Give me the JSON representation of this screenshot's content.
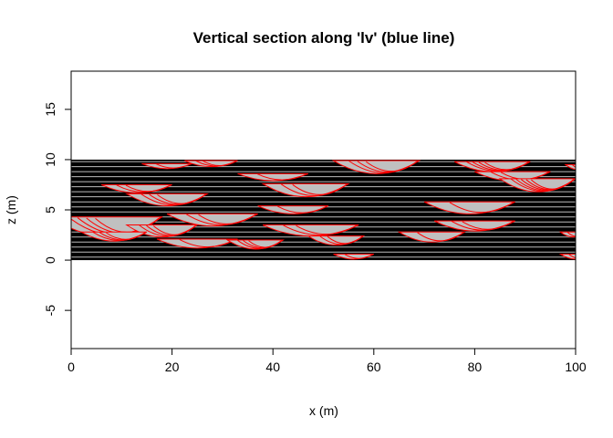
{
  "chart_data": {
    "type": "section",
    "title": "Vertical section along 'lv' (blue line)",
    "xlabel": "x (m)",
    "ylabel": "z (m)",
    "xlim": [
      0,
      100
    ],
    "ylim": [
      -8.8,
      18.8
    ],
    "xticks": [
      0,
      20,
      40,
      60,
      80,
      100
    ],
    "yticks": [
      -5,
      0,
      5,
      10,
      15
    ],
    "band": {
      "z_min": 0,
      "z_max": 10,
      "fill": "#000000"
    },
    "layer_lines_z": [
      0.3,
      0.8,
      1.3,
      1.8,
      2.3,
      2.8,
      3.3,
      3.8,
      4.3,
      4.8,
      5.3,
      5.8,
      6.3,
      6.8,
      7.3,
      7.8,
      8.3,
      8.8,
      9.3,
      9.8
    ],
    "layer_line_color": "#bebebe",
    "lens_fill": "#c0c0c0",
    "lens_stroke": "#ff0000",
    "lenses": [
      {
        "x0": 14,
        "x1": 24,
        "top": 9.6,
        "depth": 0.5,
        "inner": 1
      },
      {
        "x0": 22.5,
        "x1": 33,
        "top": 9.9,
        "depth": 0.6,
        "inner": 2
      },
      {
        "x0": 33,
        "x1": 47,
        "top": 8.6,
        "depth": 0.7,
        "inner": 1
      },
      {
        "x0": 52,
        "x1": 69,
        "top": 9.9,
        "depth": 1.3,
        "inner": 3
      },
      {
        "x0": 76,
        "x1": 91,
        "top": 9.8,
        "depth": 1.0,
        "inner": 4
      },
      {
        "x0": 80,
        "x1": 95,
        "top": 8.8,
        "depth": 0.9,
        "inner": 2
      },
      {
        "x0": 85,
        "x1": 100,
        "top": 8.1,
        "depth": 1.3,
        "inner": 5
      },
      {
        "x0": 98,
        "x1": 103,
        "top": 9.5,
        "depth": 0.5,
        "inner": 1
      },
      {
        "x0": 6,
        "x1": 20,
        "top": 7.5,
        "depth": 0.8,
        "inner": 2
      },
      {
        "x0": 11,
        "x1": 27,
        "top": 6.6,
        "depth": 1.2,
        "inner": 3
      },
      {
        "x0": 38,
        "x1": 55,
        "top": 7.6,
        "depth": 1.3,
        "inner": 2
      },
      {
        "x0": 70,
        "x1": 88,
        "top": 5.8,
        "depth": 1.2,
        "inner": 1
      },
      {
        "x0": 19,
        "x1": 37,
        "top": 4.6,
        "depth": 1.2,
        "inner": 2
      },
      {
        "x0": 37,
        "x1": 51,
        "top": 5.4,
        "depth": 0.8,
        "inner": 1
      },
      {
        "x0": -4,
        "x1": 18,
        "top": 4.3,
        "depth": 1.9,
        "inner": 4
      },
      {
        "x0": 11,
        "x1": 25,
        "top": 3.5,
        "depth": 1.2,
        "inner": 3
      },
      {
        "x0": 38,
        "x1": 57,
        "top": 3.5,
        "depth": 1.1,
        "inner": 2
      },
      {
        "x0": 72,
        "x1": 88,
        "top": 3.9,
        "depth": 1.0,
        "inner": 2
      },
      {
        "x0": 2,
        "x1": 15,
        "top": 2.8,
        "depth": 0.9,
        "inner": 3
      },
      {
        "x0": 17,
        "x1": 33,
        "top": 2.1,
        "depth": 0.9,
        "inner": 1
      },
      {
        "x0": 31,
        "x1": 42,
        "top": 2.0,
        "depth": 0.9,
        "inner": 3
      },
      {
        "x0": 47,
        "x1": 58,
        "top": 2.4,
        "depth": 0.9,
        "inner": 2
      },
      {
        "x0": 65,
        "x1": 78,
        "top": 2.8,
        "depth": 1.0,
        "inner": 1
      },
      {
        "x0": 97,
        "x1": 102,
        "top": 2.8,
        "depth": 0.5,
        "inner": 1
      },
      {
        "x0": 52,
        "x1": 60,
        "top": 0.6,
        "depth": 0.5,
        "inner": 1
      },
      {
        "x0": 97,
        "x1": 103,
        "top": 0.6,
        "depth": 0.5,
        "inner": 1
      }
    ]
  }
}
